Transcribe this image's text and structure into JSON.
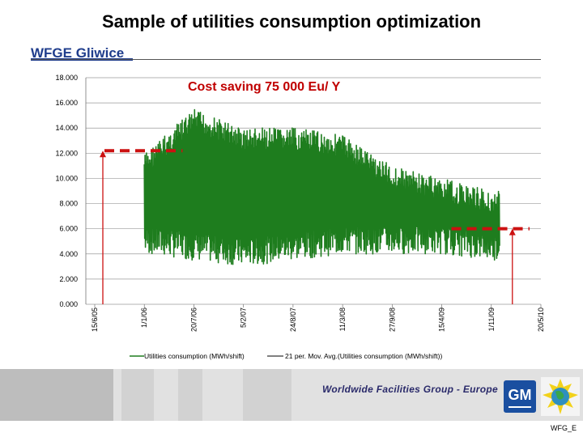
{
  "slide": {
    "title": "Sample of utilities consumption optimization",
    "site": "WFGE Gliwice",
    "footer_text": "Worldwide Facilities Group - Europe",
    "gm_logo": "GM",
    "globe_logo": "globe-icon",
    "footer_code": "WFG_E"
  },
  "chart_data": {
    "type": "line",
    "annotation": "Cost saving 75 000 Eu/ Y",
    "y_ticks": [
      "0.000",
      "2.000",
      "4.000",
      "6.000",
      "8.000",
      "10.000",
      "12.000",
      "14.000",
      "16.000",
      "18.000"
    ],
    "ylim": [
      0,
      18000
    ],
    "x_ticks": [
      "15/6/05",
      "1/1/06",
      "20/7/06",
      "5/2/07",
      "24/8/07",
      "11/3/08",
      "27/9/08",
      "15/4/09",
      "1/11/09",
      "20/5/10"
    ],
    "series": [
      {
        "name": "Utilities consumption (MWh/shift)",
        "color": "#1e7d1e",
        "envelope": [
          {
            "x": "1/1/06",
            "min": 4000,
            "max": 12000
          },
          {
            "x": "20/7/06",
            "min": 3500,
            "max": 15500
          },
          {
            "x": "5/2/07",
            "min": 3000,
            "max": 14000
          },
          {
            "x": "24/8/07",
            "min": 3500,
            "max": 14000
          },
          {
            "x": "11/3/08",
            "min": 4000,
            "max": 13500
          },
          {
            "x": "27/9/08",
            "min": 4000,
            "max": 11000
          },
          {
            "x": "15/4/09",
            "min": 4000,
            "max": 10000
          },
          {
            "x": "1/11/09",
            "min": 3500,
            "max": 9000
          }
        ]
      },
      {
        "name": "21 per. Mov. Avg.(Utilities consumption (MWh/shift))",
        "color": "#000000"
      }
    ],
    "reference_lines": [
      {
        "color": "#cc1111",
        "y": 12200,
        "from": "15/6/05",
        "to": "20/7/06"
      },
      {
        "color": "#cc1111",
        "y": 6000,
        "from": "15/4/09",
        "to": "20/5/10"
      }
    ]
  }
}
